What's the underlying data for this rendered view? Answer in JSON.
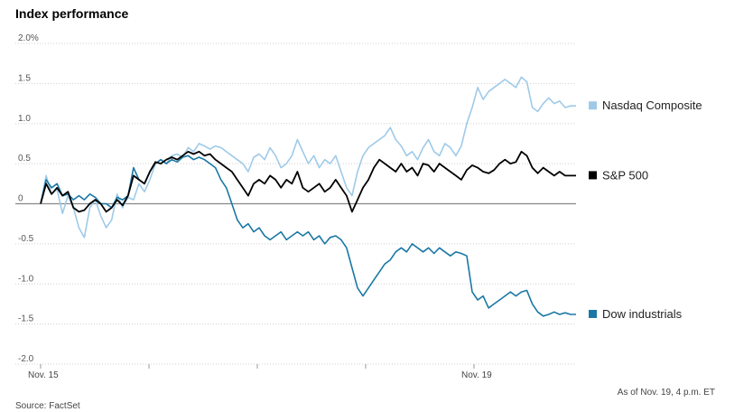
{
  "chart_data": {
    "type": "line",
    "title": "Index performance",
    "source": "Source: FactSet",
    "note": "As of Nov. 19, 4 p.m. ET",
    "x_labels": [
      "Nov. 15",
      "Nov. 19"
    ],
    "y_tick_labels": [
      "2.0%",
      "1.5",
      "1.0",
      "0.5",
      "0",
      "-0.5",
      "-1.0",
      "-1.5",
      "-2.0"
    ],
    "ylim": [
      -2.0,
      2.0
    ],
    "grid": "horizontal dotted",
    "legend_position": "right, at each line's end",
    "series": [
      {
        "name": "Nasdaq Composite",
        "color": "#9ecae8",
        "values": [
          0.0,
          0.35,
          0.12,
          0.18,
          -0.12,
          0.1,
          -0.05,
          -0.3,
          -0.42,
          -0.05,
          0.05,
          -0.15,
          -0.3,
          -0.2,
          0.12,
          -0.05,
          0.08,
          0.05,
          0.25,
          0.15,
          0.3,
          0.5,
          0.55,
          0.5,
          0.6,
          0.62,
          0.58,
          0.7,
          0.65,
          0.75,
          0.72,
          0.68,
          0.72,
          0.7,
          0.65,
          0.6,
          0.55,
          0.5,
          0.4,
          0.58,
          0.62,
          0.55,
          0.7,
          0.6,
          0.45,
          0.5,
          0.6,
          0.8,
          0.65,
          0.5,
          0.6,
          0.45,
          0.55,
          0.5,
          0.6,
          0.4,
          0.2,
          0.1,
          0.4,
          0.6,
          0.7,
          0.75,
          0.8,
          0.85,
          0.95,
          0.8,
          0.72,
          0.6,
          0.65,
          0.55,
          0.7,
          0.8,
          0.65,
          0.6,
          0.75,
          0.7,
          0.6,
          0.72,
          1.0,
          1.2,
          1.45,
          1.3,
          1.4,
          1.45,
          1.5,
          1.55,
          1.5,
          1.45,
          1.58,
          1.52,
          1.2,
          1.15,
          1.25,
          1.32,
          1.25,
          1.28,
          1.2,
          1.22,
          1.22
        ]
      },
      {
        "name": "S&P 500",
        "color": "#000000",
        "values": [
          0.0,
          0.25,
          0.12,
          0.2,
          0.1,
          0.15,
          -0.05,
          -0.1,
          -0.08,
          0.0,
          0.05,
          0.0,
          -0.1,
          -0.05,
          0.05,
          -0.02,
          0.1,
          0.35,
          0.3,
          0.25,
          0.4,
          0.52,
          0.5,
          0.55,
          0.58,
          0.55,
          0.6,
          0.65,
          0.62,
          0.65,
          0.6,
          0.62,
          0.55,
          0.5,
          0.45,
          0.4,
          0.3,
          0.2,
          0.1,
          0.25,
          0.3,
          0.25,
          0.35,
          0.3,
          0.2,
          0.3,
          0.25,
          0.4,
          0.2,
          0.15,
          0.2,
          0.25,
          0.15,
          0.2,
          0.3,
          0.2,
          0.1,
          -0.1,
          0.05,
          0.2,
          0.3,
          0.45,
          0.55,
          0.5,
          0.45,
          0.4,
          0.5,
          0.4,
          0.45,
          0.35,
          0.5,
          0.48,
          0.4,
          0.5,
          0.45,
          0.4,
          0.35,
          0.3,
          0.42,
          0.48,
          0.45,
          0.4,
          0.38,
          0.42,
          0.5,
          0.55,
          0.5,
          0.52,
          0.65,
          0.6,
          0.45,
          0.38,
          0.45,
          0.4,
          0.35,
          0.4,
          0.35,
          0.35,
          0.35
        ]
      },
      {
        "name": "Dow industrials",
        "color": "#1a78a4",
        "values": [
          0.0,
          0.3,
          0.2,
          0.25,
          0.1,
          0.12,
          0.05,
          0.1,
          0.05,
          0.12,
          0.08,
          0.0,
          0.0,
          -0.05,
          0.08,
          0.05,
          0.1,
          0.45,
          0.3,
          0.25,
          0.4,
          0.5,
          0.55,
          0.5,
          0.55,
          0.52,
          0.58,
          0.6,
          0.55,
          0.58,
          0.55,
          0.5,
          0.45,
          0.3,
          0.2,
          0.0,
          -0.2,
          -0.3,
          -0.25,
          -0.35,
          -0.3,
          -0.4,
          -0.45,
          -0.4,
          -0.35,
          -0.45,
          -0.4,
          -0.35,
          -0.4,
          -0.35,
          -0.45,
          -0.4,
          -0.5,
          -0.42,
          -0.4,
          -0.45,
          -0.55,
          -0.8,
          -1.05,
          -1.15,
          -1.05,
          -0.95,
          -0.85,
          -0.75,
          -0.7,
          -0.6,
          -0.55,
          -0.6,
          -0.5,
          -0.55,
          -0.6,
          -0.55,
          -0.62,
          -0.55,
          -0.6,
          -0.65,
          -0.6,
          -0.62,
          -0.65,
          -1.1,
          -1.2,
          -1.15,
          -1.3,
          -1.25,
          -1.2,
          -1.15,
          -1.1,
          -1.15,
          -1.1,
          -1.08,
          -1.25,
          -1.35,
          -1.4,
          -1.38,
          -1.35,
          -1.38,
          -1.36,
          -1.38,
          -1.38
        ]
      }
    ]
  }
}
